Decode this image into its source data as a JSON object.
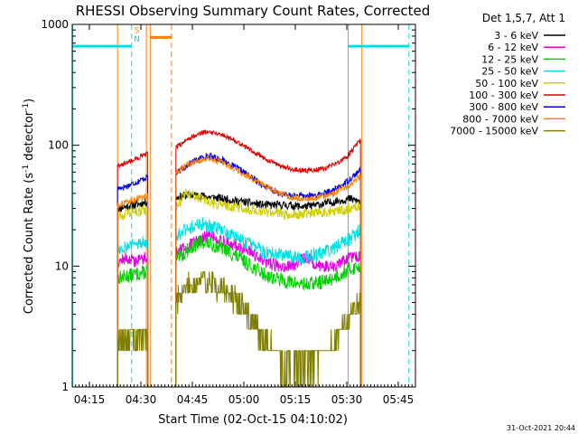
{
  "chart_data": {
    "type": "line",
    "title": "RHESSI Observing Summary Count Rates, Corrected",
    "xlabel": "Start Time (02-Oct-15 04:10:02)",
    "ylabel_main": "Corrected Count Rate (s",
    "ylabel_sup1": "-1",
    "ylabel_mid": " detector",
    "ylabel_sup2": "-1",
    "ylabel_end": ")",
    "y_scale": "log",
    "xlim_minutes": [
      0,
      100
    ],
    "ylim": [
      1,
      1000
    ],
    "x_ticks": [
      {
        "m": 5,
        "label": "04:15"
      },
      {
        "m": 20,
        "label": "04:30"
      },
      {
        "m": 35,
        "label": "04:45"
      },
      {
        "m": 50,
        "label": "05:00"
      },
      {
        "m": 65,
        "label": "05:15"
      },
      {
        "m": 80,
        "label": "05:30"
      },
      {
        "m": 95,
        "label": "05:45"
      }
    ],
    "y_ticks": [
      {
        "v": 1,
        "label": "1"
      },
      {
        "v": 10,
        "label": "10"
      },
      {
        "v": 100,
        "label": "100"
      },
      {
        "v": 1000,
        "label": "1000"
      }
    ],
    "legend_title": "Det 1,5,7, Att 1",
    "legend_placement": "right",
    "series": [
      {
        "name": "3 - 6 keV",
        "color": "#000000",
        "seed": 11,
        "noise": 0.04,
        "segments": [
          {
            "x": [
              13.2,
              18,
              20,
              22
            ],
            "y": [
              30,
              32,
              33,
              34
            ]
          },
          {
            "x": [
              30.2,
              34,
              38,
              44,
              50,
              56,
              62,
              68,
              74,
              78,
              81,
              84
            ],
            "y": [
              37,
              39,
              38,
              36,
              34,
              32,
              32,
              31,
              33,
              35,
              36,
              34
            ]
          }
        ]
      },
      {
        "name": "6 - 12 keV",
        "color": "#e000e0",
        "seed": 12,
        "noise": 0.06,
        "segments": [
          {
            "x": [
              13.2,
              16,
              18,
              20,
              22
            ],
            "y": [
              11,
              11.5,
              11,
              11.5,
              12
            ]
          },
          {
            "x": [
              30.2,
              33,
              36,
              40,
              44,
              50,
              56,
              60,
              64,
              68,
              72,
              76,
              79,
              82,
              84
            ],
            "y": [
              13,
              14,
              16,
              18,
              16,
              14,
              11,
              10,
              10,
              12,
              10,
              10,
              11,
              12,
              12
            ]
          }
        ]
      },
      {
        "name": "12 - 25 keV",
        "color": "#00d000",
        "seed": 13,
        "noise": 0.07,
        "segments": [
          {
            "x": [
              13.2,
              18,
              22
            ],
            "y": [
              8,
              8.5,
              9
            ]
          },
          {
            "x": [
              30.2,
              34,
              38,
              44,
              50,
              56,
              62,
              68,
              74,
              78,
              81,
              84
            ],
            "y": [
              11,
              14,
              16,
              14,
              11,
              8.5,
              7.5,
              7,
              7.5,
              8.5,
              9.5,
              10
            ]
          }
        ]
      },
      {
        "name": "25 - 50 keV",
        "color": "#00e0e0",
        "seed": 14,
        "noise": 0.07,
        "segments": [
          {
            "x": [
              13.2,
              18,
              22
            ],
            "y": [
              14,
              15,
              16
            ]
          },
          {
            "x": [
              30.2,
              34,
              38,
              44,
              50,
              56,
              62,
              68,
              74,
              78,
              81,
              84
            ],
            "y": [
              18,
              21,
              22,
              20,
              16,
              13,
              12,
              12,
              13,
              15,
              17,
              20
            ]
          }
        ]
      },
      {
        "name": "50 - 100 keV",
        "color": "#d0d000",
        "seed": 15,
        "noise": 0.05,
        "segments": [
          {
            "x": [
              13.2,
              18,
              22
            ],
            "y": [
              26,
              28,
              29
            ]
          },
          {
            "x": [
              30.2,
              33,
              36,
              40,
              44,
              50,
              56,
              62,
              68,
              74,
              78,
              81,
              84
            ],
            "y": [
              30,
              40,
              38,
              33,
              32,
              30,
              28,
              27,
              27,
              28,
              29,
              30,
              32
            ]
          }
        ]
      },
      {
        "name": "100 - 300 keV",
        "color": "#e00000",
        "seed": 16,
        "noise": 0.025,
        "segments": [
          {
            "x": [
              13.2,
              16,
              19,
              22
            ],
            "y": [
              68,
              72,
              78,
              85
            ]
          },
          {
            "x": [
              30.2,
              34,
              38,
              40,
              44,
              50,
              56,
              60,
              64,
              68,
              72,
              76,
              80,
              82,
              84
            ],
            "y": [
              95,
              115,
              128,
              130,
              122,
              100,
              78,
              68,
              63,
              62,
              63,
              68,
              80,
              95,
              110
            ]
          }
        ]
      },
      {
        "name": "300 - 800 keV",
        "color": "#0000e0",
        "seed": 17,
        "noise": 0.03,
        "segments": [
          {
            "x": [
              13.2,
              16,
              19,
              22
            ],
            "y": [
              44,
              46,
              50,
              55
            ]
          },
          {
            "x": [
              30.2,
              34,
              38,
              40,
              44,
              50,
              56,
              60,
              64,
              68,
              72,
              76,
              80,
              82,
              84
            ],
            "y": [
              58,
              70,
              80,
              82,
              75,
              60,
              46,
              40,
              38,
              38,
              39,
              42,
              50,
              56,
              62
            ]
          }
        ]
      },
      {
        "name": "800 - 7000 keV",
        "color": "#ff8000",
        "seed": 18,
        "noise": 0.03,
        "segments": [
          {
            "x": [
              13.2,
              16,
              19,
              22
            ],
            "y": [
              32,
              34,
              36,
              38
            ]
          },
          {
            "x": [
              30.2,
              34,
              38,
              40,
              44,
              50,
              56,
              60,
              64,
              68,
              72,
              76,
              80,
              82,
              84
            ],
            "y": [
              60,
              70,
              76,
              78,
              72,
              58,
              46,
              40,
              37,
              36,
              37,
              40,
              45,
              50,
              55
            ]
          }
        ]
      },
      {
        "name": "7000 - 15000 keV",
        "color": "#808000",
        "seed": 19,
        "noise": 0.12,
        "segments": [
          {
            "x": [
              13.2,
              16,
              19,
              22
            ],
            "y": [
              2.5,
              2.5,
              2.6,
              2.8
            ]
          },
          {
            "x": [
              30.2,
              34,
              38,
              44,
              50,
              54,
              58,
              62,
              66,
              70,
              74,
              78,
              81,
              84
            ],
            "y": [
              5,
              7,
              7.5,
              6.5,
              4.5,
              3,
              2,
              1.5,
              1.5,
              1.7,
              2,
              3,
              4,
              5
            ]
          }
        ]
      }
    ],
    "markers": [
      {
        "type": "solid",
        "color": "#00e0e0",
        "x": 0.1
      },
      {
        "type": "dashed",
        "color": "#00e0e0",
        "x": 17.3
      },
      {
        "type": "solid",
        "color": "#ff8000",
        "x": 13.2
      },
      {
        "type": "solid",
        "color": "#ff8000",
        "x": 21.6
      },
      {
        "type": "solid",
        "color": "#ff8000",
        "x": 22.7
      },
      {
        "type": "dashed",
        "color": "#ff8000",
        "x": 28.9
      },
      {
        "type": "solid",
        "color": "#00e0e0",
        "x": 80.4
      },
      {
        "type": "solid",
        "color": "#ff8000",
        "x": 84.4
      },
      {
        "type": "dashed",
        "color": "#00e0e0",
        "x": 98.1
      }
    ],
    "night_bars": [
      {
        "x0": 0,
        "x1": 17.3,
        "y": 660
      },
      {
        "x0": 80.4,
        "x1": 98.1,
        "y": 660
      }
    ],
    "saa_bar": {
      "x0": 22.7,
      "x1": 28.9,
      "y": 780
    },
    "flag_labels": [
      {
        "text": "S",
        "color": "#ff8000",
        "x": 18.8,
        "y": 850
      },
      {
        "text": "N",
        "color": "#00e0e0",
        "x": 18.8,
        "y": 720
      }
    ],
    "footer_date": "31-Oct-2021 20:44"
  }
}
